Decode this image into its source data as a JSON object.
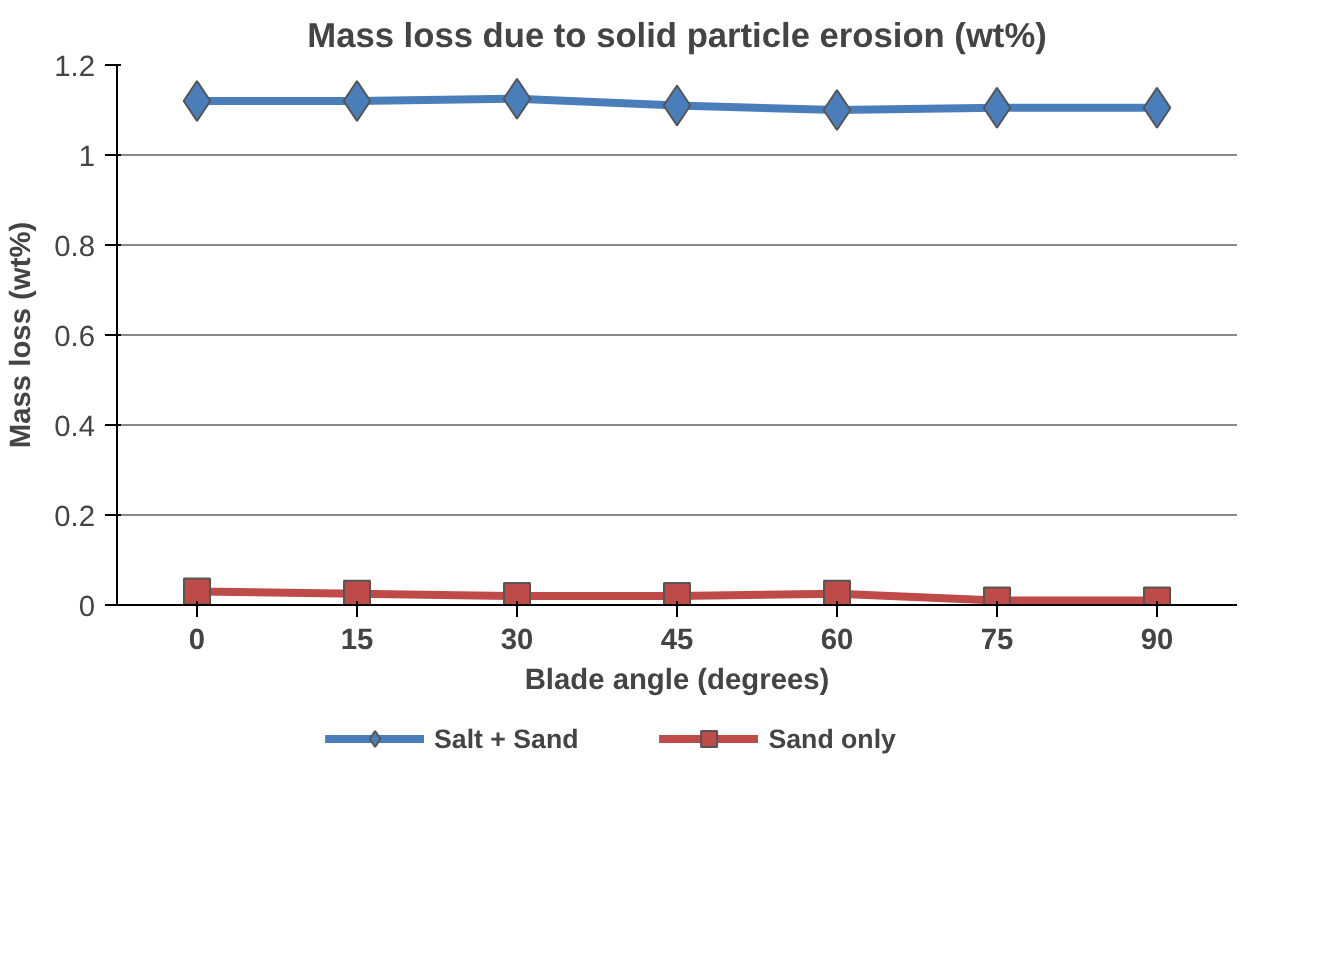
{
  "chart_data": {
    "type": "line",
    "title": "Mass loss due to solid particle erosion (wt%)",
    "xlabel": "Blade angle (degrees)",
    "ylabel": "Mass loss (wt%)",
    "categories": [
      "0",
      "15",
      "30",
      "45",
      "60",
      "75",
      "90"
    ],
    "series": [
      {
        "name": "Salt + Sand",
        "color": "#4a7ebb",
        "marker": "diamond",
        "values": [
          1.12,
          1.12,
          1.125,
          1.11,
          1.1,
          1.105,
          1.105
        ]
      },
      {
        "name": "Sand only",
        "color": "#be4b48",
        "marker": "square",
        "values": [
          0.03,
          0.025,
          0.02,
          0.02,
          0.025,
          0.01,
          0.01
        ]
      }
    ],
    "ylim": [
      0,
      1.2
    ],
    "yticks": [
      0,
      0.2,
      0.4,
      0.6,
      0.8,
      1,
      1.2
    ],
    "grid": "y",
    "legend": "bottom"
  }
}
